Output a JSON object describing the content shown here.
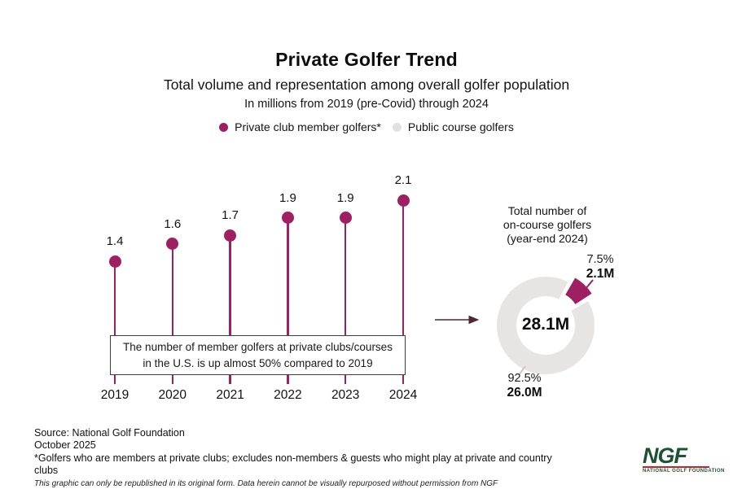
{
  "header": {
    "title": "Private Golfer Trend",
    "subtitle": "Total volume and representation among overall golfer population",
    "subnote": "In millions from 2019 (pre-Covid) through 2024"
  },
  "legend": {
    "items": [
      {
        "label": "Private club member golfers*",
        "color": "#9e2063"
      },
      {
        "label": "Public course golfers",
        "color": "#e2e0e0"
      }
    ]
  },
  "chart_data": [
    {
      "type": "bar",
      "style": "lollipop",
      "series_name": "Private club member golfers (millions)",
      "categories": [
        "2019",
        "2020",
        "2021",
        "2022",
        "2023",
        "2024"
      ],
      "values": [
        1.4,
        1.6,
        1.7,
        1.9,
        1.9,
        2.1
      ],
      "unit": "millions",
      "ylim": [
        0,
        2.3
      ],
      "grid": false,
      "color": "#9e2063",
      "annotation": "The number of member golfers at private clubs/courses in the U.S. is up almost 50% compared to 2019"
    },
    {
      "type": "pie",
      "style": "donut-exploded-slice",
      "title": "Total number of on-course golfers (year-end 2024)",
      "title_lines": [
        "Total number of",
        "on-course golfers",
        "(year-end 2024)"
      ],
      "center_label": "28.1M",
      "slices": [
        {
          "name": "Private club member golfers",
          "pct": 7.5,
          "pct_label": "7.5%",
          "value_label": "2.1M",
          "color": "#9e2063",
          "exploded": true
        },
        {
          "name": "Public course golfers",
          "pct": 92.5,
          "pct_label": "92.5%",
          "value_label": "26.0M",
          "color": "#e7e5e4",
          "exploded": false
        }
      ]
    }
  ],
  "arrow_color": "#4b2a35",
  "footer": {
    "source": "Source: National Golf Foundation",
    "date": "October 2025",
    "note": "*Golfers who are members at private clubs; excludes non-members & guests who might play at private and country clubs",
    "legal": "This graphic can only be republished in its original form. Data herein cannot be visually repurposed without permission from NGF"
  },
  "logo": {
    "text": "NGF",
    "tagline": "NATIONAL GOLF FOUNDATION",
    "green": "#1b5433",
    "red": "#c1272d"
  }
}
